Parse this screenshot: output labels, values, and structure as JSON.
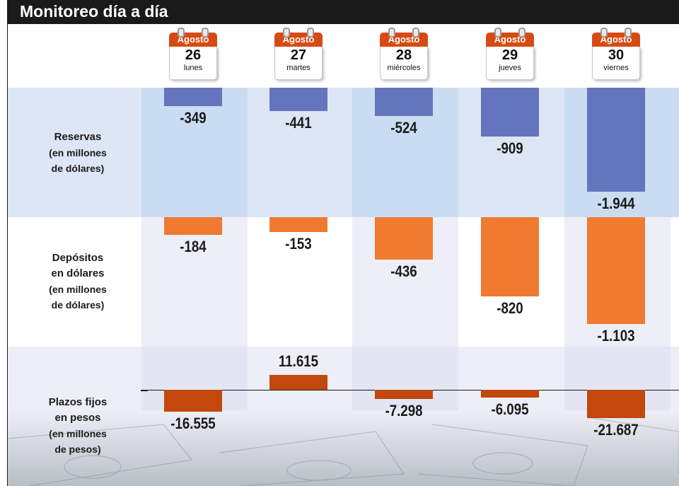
{
  "header": {
    "title": "Monitoreo día a día"
  },
  "days": [
    {
      "month": "Agosto",
      "day": "26",
      "weekday": "lunes"
    },
    {
      "month": "Agosto",
      "day": "27",
      "weekday": "martes"
    },
    {
      "month": "Agosto",
      "day": "28",
      "weekday": "miércoles"
    },
    {
      "month": "Agosto",
      "day": "29",
      "weekday": "jueves"
    },
    {
      "month": "Agosto",
      "day": "30",
      "weekday": "viernes"
    }
  ],
  "rows": [
    {
      "lines": [
        "Reservas"
      ],
      "sublines": [
        "(en millones",
        "de dólares)"
      ]
    },
    {
      "lines": [
        "Depósitos",
        "en dólares"
      ],
      "sublines": [
        "(en millones",
        "de dólares)"
      ]
    },
    {
      "lines": [
        "Plazos fijos",
        "en pesos"
      ],
      "sublines": [
        "(en millones",
        "de pesos)"
      ]
    }
  ],
  "colors": {
    "reservas": "#6575bd",
    "depositos": "#f07a30",
    "plazos": "#c2480e",
    "band_blue": "#dde6f4",
    "col_blue": "#c9dcf1",
    "band_light": "#eeeef8"
  },
  "chart_data": [
    {
      "type": "bar",
      "categories": [
        "26",
        "27",
        "28",
        "29",
        "30"
      ],
      "series": [
        {
          "name": "Reservas",
          "values": [
            -349,
            -441,
            -524,
            -909,
            -1944
          ]
        }
      ],
      "labels": [
        "-349",
        "-441",
        "-524",
        "-909",
        "-1.944"
      ]
    },
    {
      "type": "bar",
      "categories": [
        "26",
        "27",
        "28",
        "29",
        "30"
      ],
      "series": [
        {
          "name": "Depósitos en dólares",
          "values": [
            -184,
            -153,
            -436,
            -820,
            -1103
          ]
        }
      ],
      "labels": [
        "-184",
        "-153",
        "-436",
        "-820",
        "-1.103"
      ]
    },
    {
      "type": "bar",
      "categories": [
        "26",
        "27",
        "28",
        "29",
        "30"
      ],
      "series": [
        {
          "name": "Plazos fijos en pesos",
          "values": [
            -16555,
            11615,
            -7298,
            -6095,
            -21687
          ]
        }
      ],
      "labels": [
        "-16.555",
        "11.615",
        "-7.298",
        "-6.095",
        "-21.687"
      ]
    }
  ]
}
